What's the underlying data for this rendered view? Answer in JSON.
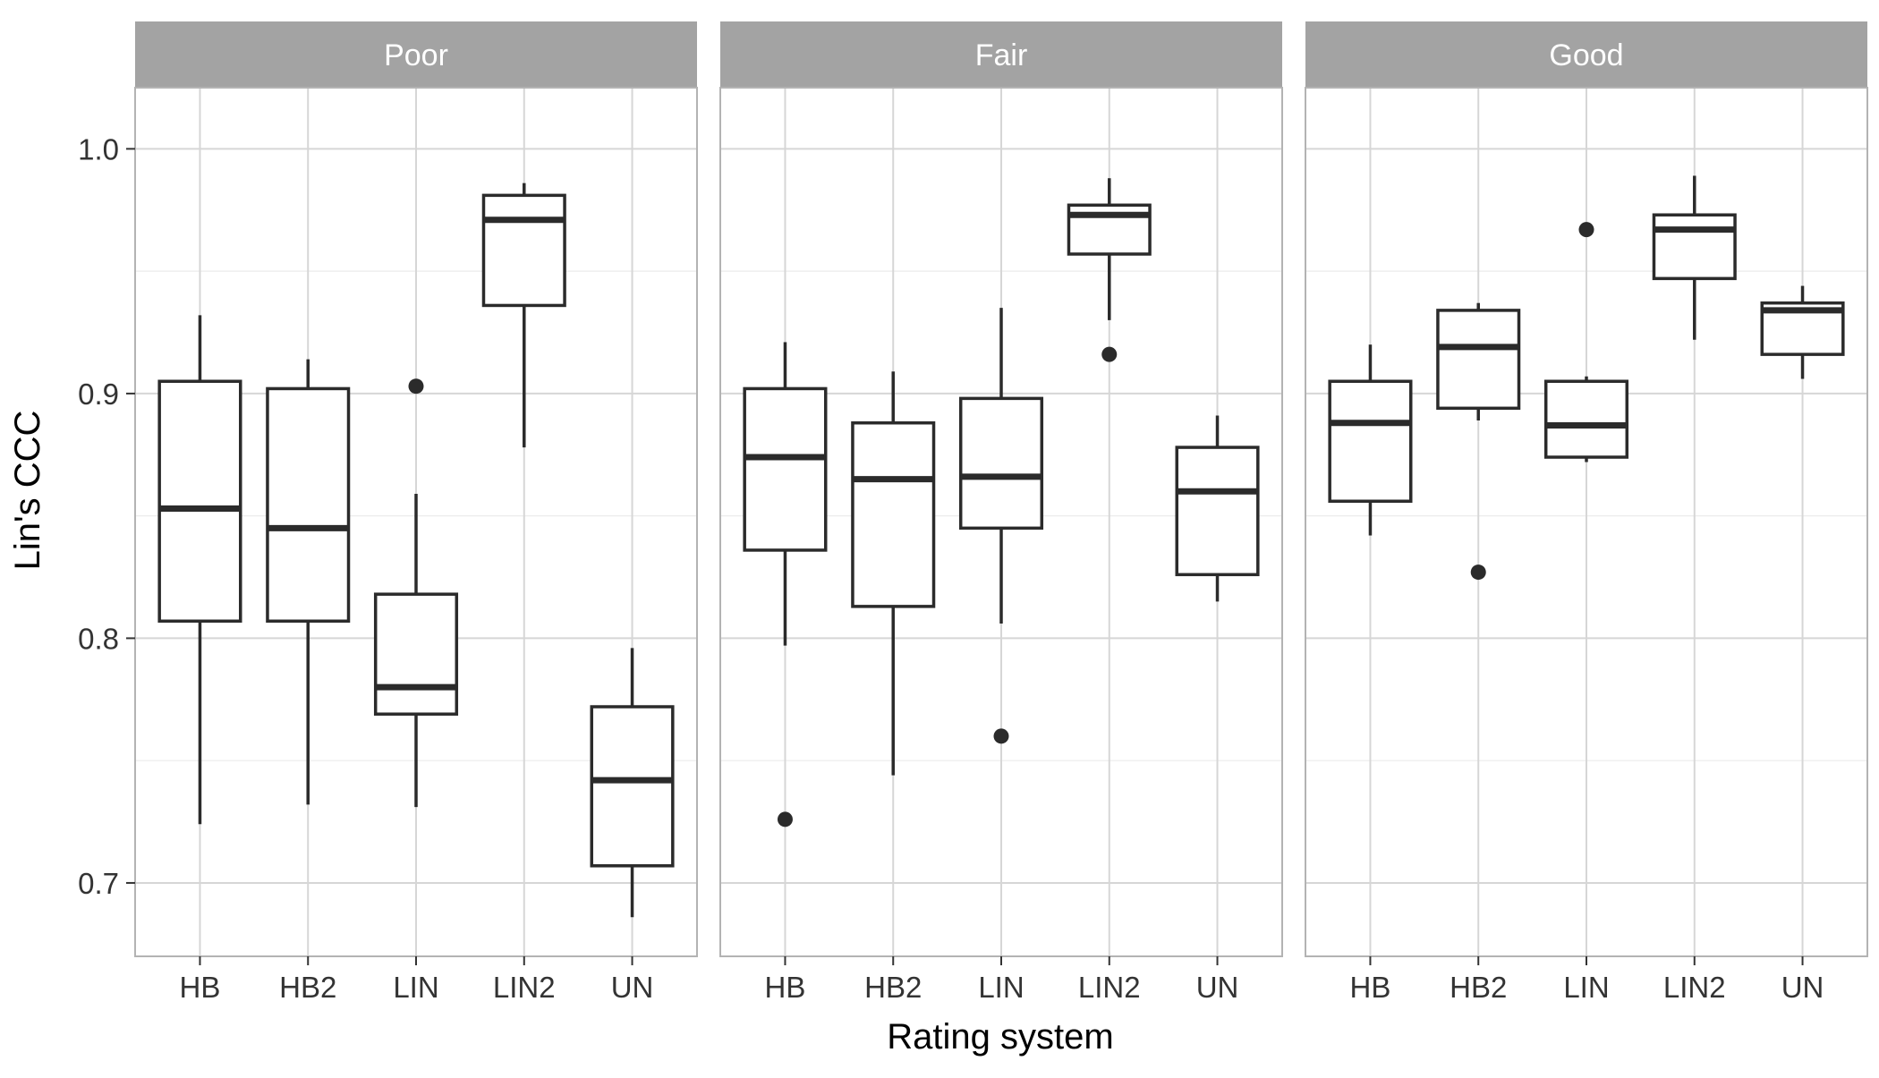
{
  "chart_data": {
    "type": "boxplot",
    "xlabel": "Rating system",
    "ylabel": "Lin's CCC",
    "ylim": [
      0.67,
      1.025
    ],
    "yticks": [
      0.7,
      0.8,
      0.9,
      1.0
    ],
    "ytick_labels": [
      "0.7",
      "0.8",
      "0.9",
      "1.0"
    ],
    "grid": true,
    "categories": [
      "HB",
      "HB2",
      "LIN",
      "LIN2",
      "UN"
    ],
    "facets": [
      {
        "label": "Poor",
        "boxes": [
          {
            "category": "HB",
            "min": 0.724,
            "q1": 0.807,
            "median": 0.853,
            "q3": 0.905,
            "max": 0.932,
            "outliers": []
          },
          {
            "category": "HB2",
            "min": 0.732,
            "q1": 0.807,
            "median": 0.845,
            "q3": 0.902,
            "max": 0.914,
            "outliers": []
          },
          {
            "category": "LIN",
            "min": 0.731,
            "q1": 0.769,
            "median": 0.78,
            "q3": 0.818,
            "max": 0.859,
            "outliers": [
              0.903
            ]
          },
          {
            "category": "LIN2",
            "min": 0.878,
            "q1": 0.936,
            "median": 0.971,
            "q3": 0.981,
            "max": 0.986,
            "outliers": []
          },
          {
            "category": "UN",
            "min": 0.686,
            "q1": 0.707,
            "median": 0.742,
            "q3": 0.772,
            "max": 0.796,
            "outliers": []
          }
        ]
      },
      {
        "label": "Fair",
        "boxes": [
          {
            "category": "HB",
            "min": 0.797,
            "q1": 0.836,
            "median": 0.874,
            "q3": 0.902,
            "max": 0.921,
            "outliers": [
              0.726
            ]
          },
          {
            "category": "HB2",
            "min": 0.744,
            "q1": 0.813,
            "median": 0.865,
            "q3": 0.888,
            "max": 0.909,
            "outliers": []
          },
          {
            "category": "LIN",
            "min": 0.806,
            "q1": 0.845,
            "median": 0.866,
            "q3": 0.898,
            "max": 0.935,
            "outliers": [
              0.76
            ]
          },
          {
            "category": "LIN2",
            "min": 0.93,
            "q1": 0.957,
            "median": 0.973,
            "q3": 0.977,
            "max": 0.988,
            "outliers": [
              0.916
            ]
          },
          {
            "category": "UN",
            "min": 0.815,
            "q1": 0.826,
            "median": 0.86,
            "q3": 0.878,
            "max": 0.891,
            "outliers": []
          }
        ]
      },
      {
        "label": "Good",
        "boxes": [
          {
            "category": "HB",
            "min": 0.842,
            "q1": 0.856,
            "median": 0.888,
            "q3": 0.905,
            "max": 0.92,
            "outliers": []
          },
          {
            "category": "HB2",
            "min": 0.889,
            "q1": 0.894,
            "median": 0.919,
            "q3": 0.934,
            "max": 0.937,
            "outliers": [
              0.827
            ]
          },
          {
            "category": "LIN",
            "min": 0.872,
            "q1": 0.874,
            "median": 0.887,
            "q3": 0.905,
            "max": 0.907,
            "outliers": [
              0.967
            ]
          },
          {
            "category": "LIN2",
            "min": 0.922,
            "q1": 0.947,
            "median": 0.967,
            "q3": 0.973,
            "max": 0.989,
            "outliers": []
          },
          {
            "category": "UN",
            "min": 0.906,
            "q1": 0.916,
            "median": 0.934,
            "q3": 0.937,
            "max": 0.944,
            "outliers": []
          }
        ]
      }
    ]
  }
}
